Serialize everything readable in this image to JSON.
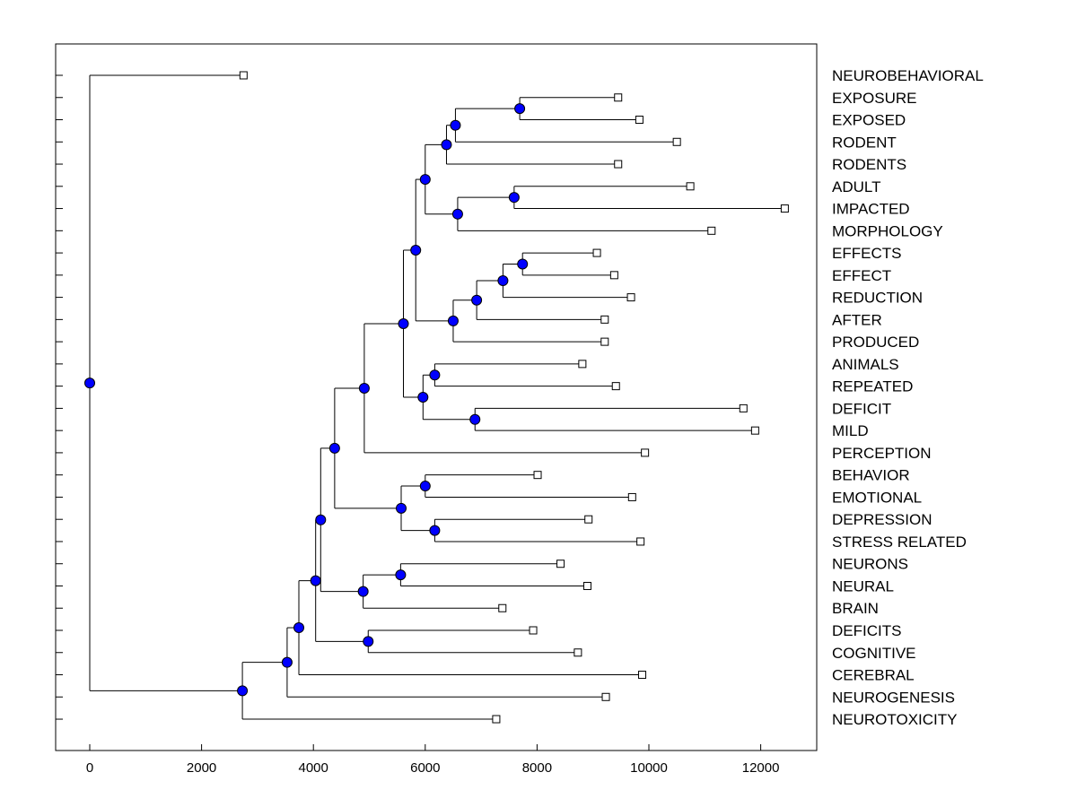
{
  "chart_data": {
    "type": "dendrogram",
    "title": "",
    "xlabel": "",
    "ylabel": "",
    "xlim": [
      -600,
      13000
    ],
    "xticks": [
      0,
      2000,
      4000,
      6000,
      8000,
      10000,
      12000
    ],
    "xtick_labels": [
      "0",
      "2000",
      "4000",
      "6000",
      "8000",
      "10000",
      "12000"
    ],
    "colors": {
      "node": "#0000ff",
      "line": "#000000",
      "leaf": "#ffffff"
    },
    "leaves": [
      {
        "label": "NEUROBEHAVIORAL",
        "x": 2750
      },
      {
        "label": "EXPOSURE",
        "x": 9450
      },
      {
        "label": "EXPOSED",
        "x": 9830
      },
      {
        "label": "RODENT",
        "x": 10500
      },
      {
        "label": "RODENTS",
        "x": 9450
      },
      {
        "label": "ADULT",
        "x": 10740
      },
      {
        "label": "IMPACTED",
        "x": 12430
      },
      {
        "label": "MORPHOLOGY",
        "x": 11120
      },
      {
        "label": "EFFECTS",
        "x": 9070
      },
      {
        "label": "EFFECT",
        "x": 9380
      },
      {
        "label": "REDUCTION",
        "x": 9680
      },
      {
        "label": "AFTER",
        "x": 9210
      },
      {
        "label": "PRODUCED",
        "x": 9210
      },
      {
        "label": "ANIMALS",
        "x": 8810
      },
      {
        "label": "REPEATED",
        "x": 9410
      },
      {
        "label": "DEFICIT",
        "x": 11690
      },
      {
        "label": "MILD",
        "x": 11900
      },
      {
        "label": "PERCEPTION",
        "x": 9930
      },
      {
        "label": "BEHAVIOR",
        "x": 8010
      },
      {
        "label": "EMOTIONAL",
        "x": 9700
      },
      {
        "label": "DEPRESSION",
        "x": 8920
      },
      {
        "label": "STRESS RELATED",
        "x": 9850
      },
      {
        "label": "NEURONS",
        "x": 8420
      },
      {
        "label": "NEURAL",
        "x": 8900
      },
      {
        "label": "BRAIN",
        "x": 7380
      },
      {
        "label": "DEFICITS",
        "x": 7930
      },
      {
        "label": "COGNITIVE",
        "x": 8730
      },
      {
        "label": "CEREBRAL",
        "x": 9880
      },
      {
        "label": "NEUROGENESIS",
        "x": 9230
      },
      {
        "label": "NEUROTOXICITY",
        "x": 7270
      }
    ],
    "merges": [
      {
        "id": "n1",
        "x": 7690,
        "children": [
          "L1",
          "L2"
        ]
      },
      {
        "id": "n2",
        "x": 6540,
        "children": [
          "n1",
          "L3"
        ]
      },
      {
        "id": "n3",
        "x": 6380,
        "children": [
          "n2",
          "L4"
        ]
      },
      {
        "id": "n4",
        "x": 7590,
        "children": [
          "L5",
          "L6"
        ]
      },
      {
        "id": "n5",
        "x": 6580,
        "children": [
          "n4",
          "L7"
        ]
      },
      {
        "id": "n6",
        "x": 6000,
        "children": [
          "n3",
          "n5"
        ]
      },
      {
        "id": "n7",
        "x": 7740,
        "children": [
          "L8",
          "L9"
        ]
      },
      {
        "id": "n8",
        "x": 7390,
        "children": [
          "n7",
          "L10"
        ]
      },
      {
        "id": "n9",
        "x": 6920,
        "children": [
          "n8",
          "L11"
        ]
      },
      {
        "id": "n10",
        "x": 6500,
        "children": [
          "n9",
          "L12"
        ]
      },
      {
        "id": "n11",
        "x": 5830,
        "children": [
          "n6",
          "n10"
        ]
      },
      {
        "id": "n12",
        "x": 6170,
        "children": [
          "L13",
          "L14"
        ]
      },
      {
        "id": "n13",
        "x": 6890,
        "children": [
          "L15",
          "L16"
        ]
      },
      {
        "id": "n14",
        "x": 5960,
        "children": [
          "n12",
          "n13"
        ]
      },
      {
        "id": "n15",
        "x": 5610,
        "children": [
          "n11",
          "n14"
        ]
      },
      {
        "id": "n16",
        "x": 4910,
        "children": [
          "n15",
          "L17"
        ]
      },
      {
        "id": "n17",
        "x": 6000,
        "children": [
          "L18",
          "L19"
        ]
      },
      {
        "id": "n18",
        "x": 6170,
        "children": [
          "L20",
          "L21"
        ]
      },
      {
        "id": "n19",
        "x": 5570,
        "children": [
          "n17",
          "n18"
        ]
      },
      {
        "id": "n20",
        "x": 4380,
        "children": [
          "n16",
          "n19"
        ]
      },
      {
        "id": "n21",
        "x": 5560,
        "children": [
          "L22",
          "L23"
        ]
      },
      {
        "id": "n22",
        "x": 4890,
        "children": [
          "n21",
          "L24"
        ]
      },
      {
        "id": "n23",
        "x": 4130,
        "children": [
          "n20",
          "n22"
        ]
      },
      {
        "id": "n24",
        "x": 4980,
        "children": [
          "L25",
          "L26"
        ]
      },
      {
        "id": "n25",
        "x": 4040,
        "children": [
          "n23",
          "n24"
        ]
      },
      {
        "id": "n26",
        "x": 3740,
        "children": [
          "n25",
          "L27"
        ]
      },
      {
        "id": "n27",
        "x": 3530,
        "children": [
          "n26",
          "L28"
        ]
      },
      {
        "id": "n28",
        "x": 2730,
        "children": [
          "n27",
          "L29"
        ]
      },
      {
        "id": "n29",
        "x": 0,
        "children": [
          "L0",
          "n28"
        ]
      }
    ]
  }
}
